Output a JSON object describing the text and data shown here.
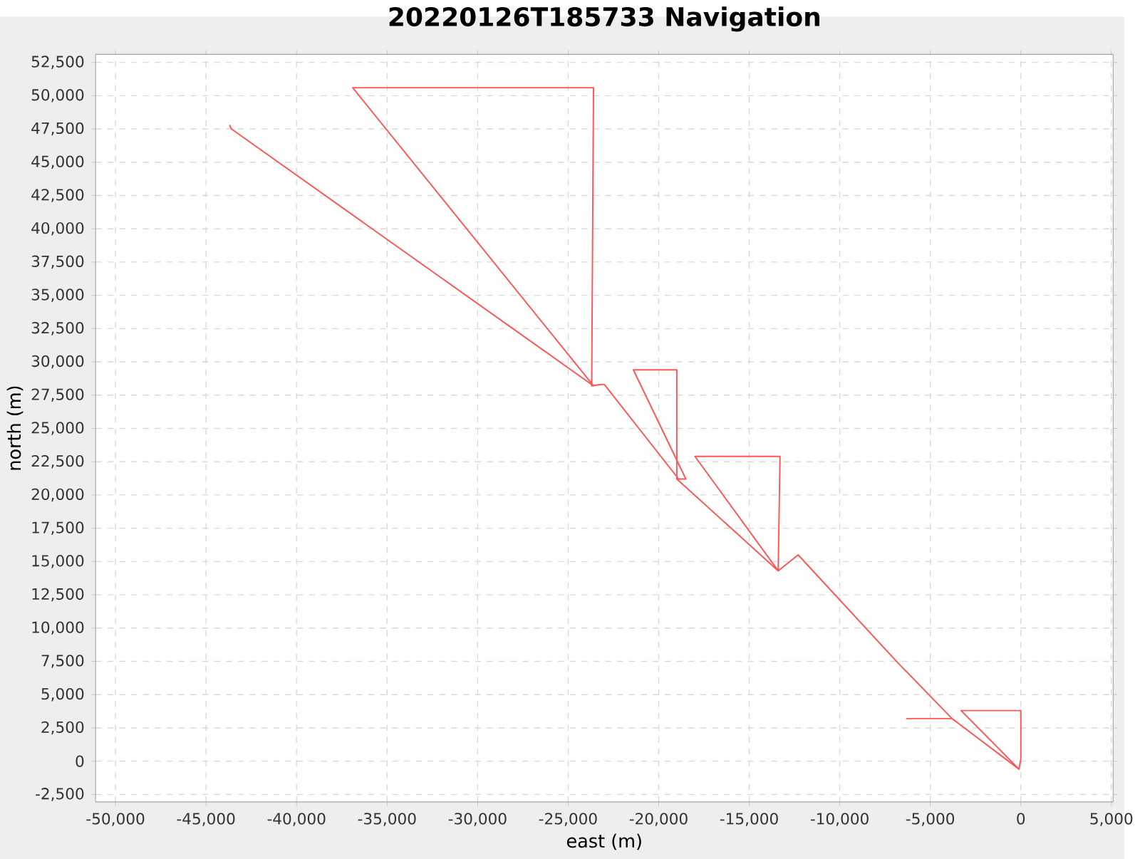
{
  "chart_data": {
    "type": "line",
    "title": "20220126T185733 Navigation",
    "xlabel": "east (m)",
    "ylabel": "north (m)",
    "xlim": [
      -51100,
      5100
    ],
    "ylim": [
      -3060,
      53100
    ],
    "xticks": [
      {
        "value": -50000,
        "label": "-50,000"
      },
      {
        "value": -45000,
        "label": "-45,000"
      },
      {
        "value": -40000,
        "label": "-40,000"
      },
      {
        "value": -35000,
        "label": "-35,000"
      },
      {
        "value": -30000,
        "label": "-30,000"
      },
      {
        "value": -25000,
        "label": "-25,000"
      },
      {
        "value": -20000,
        "label": "-20,000"
      },
      {
        "value": -15000,
        "label": "-15,000"
      },
      {
        "value": -10000,
        "label": "-10,000"
      },
      {
        "value": -5000,
        "label": "-5,000"
      },
      0,
      {
        "value": 5000,
        "label": "5,000"
      }
    ],
    "yticks": [
      {
        "value": -2500,
        "label": "-2,500"
      },
      0,
      {
        "value": 2500,
        "label": "2,500"
      },
      {
        "value": 5000,
        "label": "5,000"
      },
      {
        "value": 7500,
        "label": "7,500"
      },
      {
        "value": 10000,
        "label": "10,000"
      },
      {
        "value": 12500,
        "label": "12,500"
      },
      {
        "value": 15000,
        "label": "15,000"
      },
      {
        "value": 17500,
        "label": "17,500"
      },
      {
        "value": 20000,
        "label": "20,000"
      },
      {
        "value": 22500,
        "label": "22,500"
      },
      {
        "value": 25000,
        "label": "25,000"
      },
      {
        "value": 27500,
        "label": "27,500"
      },
      {
        "value": 30000,
        "label": "30,000"
      },
      {
        "value": 32500,
        "label": "32,500"
      },
      {
        "value": 35000,
        "label": "35,000"
      },
      {
        "value": 37500,
        "label": "37,500"
      },
      {
        "value": 40000,
        "label": "40,000"
      },
      {
        "value": 42500,
        "label": "42,500"
      },
      {
        "value": 45000,
        "label": "45,000"
      },
      {
        "value": 47500,
        "label": "47,500"
      },
      {
        "value": 50000,
        "label": "50,000"
      },
      {
        "value": 52500,
        "label": "52,500"
      }
    ],
    "grid": true,
    "marker": "none",
    "line_style": "solid",
    "series": [
      {
        "color": "#ff5555",
        "x": [
          -43700,
          -43600,
          -23600,
          -36900,
          -23600,
          -23700,
          -23200,
          -23000,
          -18900,
          -18500,
          -21400,
          -19000,
          -19000,
          -13400,
          -18000,
          -13300,
          -13400,
          -12300,
          -6800,
          -3800,
          -6300,
          -3800,
          -100,
          0,
          0,
          -3300,
          -100
        ],
        "values": [
          47800,
          47500,
          28200,
          50600,
          50600,
          28200,
          28300,
          28300,
          21200,
          21200,
          29400,
          29400,
          21200,
          14300,
          22900,
          22900,
          14300,
          15500,
          7400,
          3200,
          3200,
          3200,
          -600,
          200,
          3800,
          3800,
          -600
        ]
      }
    ]
  }
}
